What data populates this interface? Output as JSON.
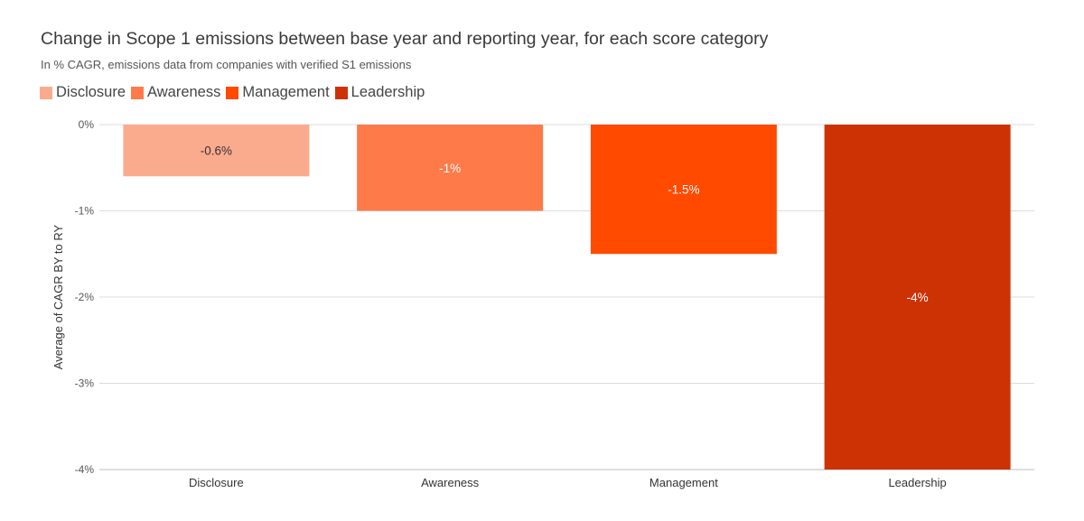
{
  "chart_data": {
    "type": "bar",
    "title": "Change in Scope 1 emissions between base year and reporting year, for each score category",
    "subtitle": "In % CAGR, emissions data from companies with verified S1 emissions",
    "ylabel": "Average of CAGR BY to RY",
    "xlabel": "",
    "categories": [
      "Disclosure",
      "Awareness",
      "Management",
      "Leadership"
    ],
    "values": [
      -0.6,
      -1,
      -1.5,
      -4
    ],
    "data_labels": [
      "-0.6%",
      "-1%",
      "-1.5%",
      "-4%"
    ],
    "colors": [
      "#fbab8d",
      "#ff7a49",
      "#ff4a00",
      "#cd3205"
    ],
    "label_colors": [
      "#333333",
      "#ffffff",
      "#ffffff",
      "#ffffff"
    ],
    "ylim": [
      -4,
      0
    ],
    "yticks": [
      0,
      -1,
      -2,
      -3,
      -4
    ],
    "ytick_labels": [
      "0%",
      "-1%",
      "-2%",
      "-3%",
      "-4%"
    ],
    "legend": [
      "Disclosure",
      "Awareness",
      "Management",
      "Leadership"
    ],
    "legend_position": "top-left",
    "grid": true
  }
}
